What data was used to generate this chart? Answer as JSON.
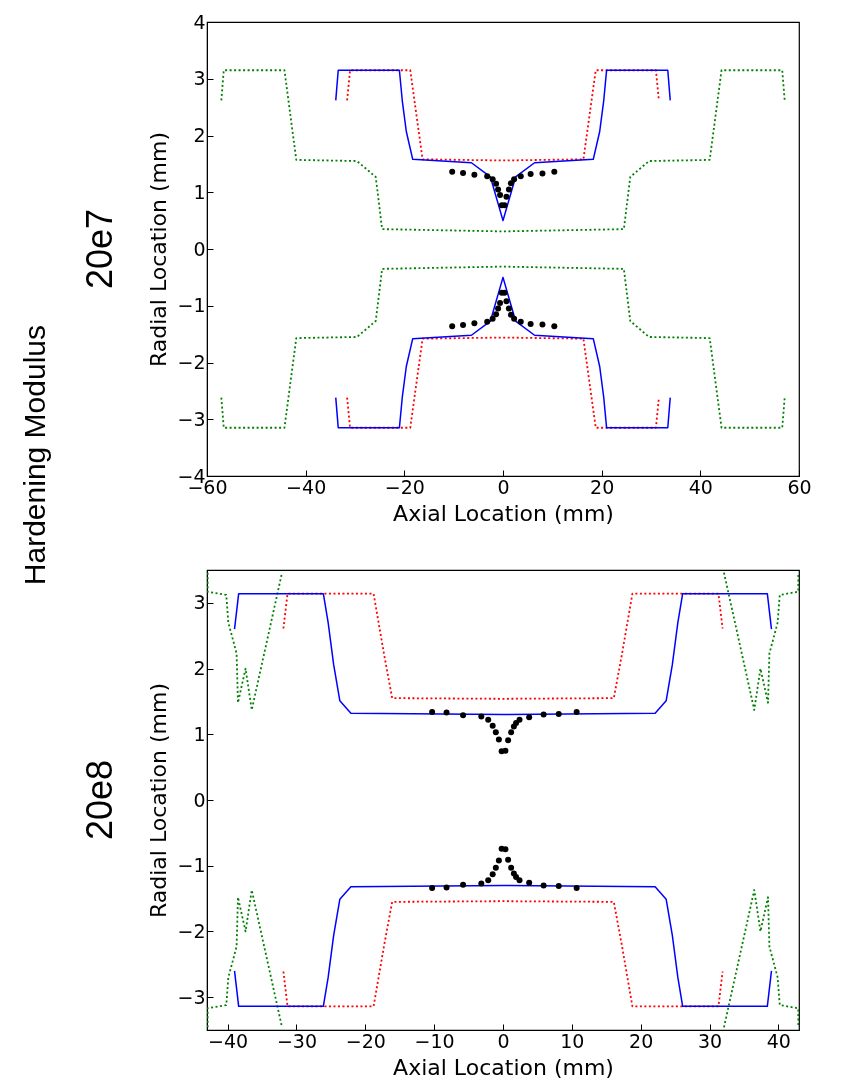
{
  "chart_data": [
    {
      "type": "line",
      "title": "20e7",
      "xlabel": "Axial Location (mm)",
      "ylabel": "Radial Location (mm)",
      "annotations": [
        "Hardening Modulus"
      ],
      "xlim": [
        -60,
        60
      ],
      "ylim": [
        -4,
        4
      ],
      "xticks": [
        -60,
        -40,
        -20,
        0,
        20,
        40,
        60
      ],
      "yticks": [
        -4,
        -3,
        -2,
        -1,
        0,
        1,
        2,
        3,
        4
      ],
      "series": [
        {
          "color": "#008000",
          "line_style": "dotted",
          "x": [
            -57.1,
            -56.6,
            -44.3,
            -41.9,
            -29.6,
            -25.8,
            -24.5,
            0,
            24.5,
            25.8,
            29.6,
            41.9,
            44.3,
            56.6,
            57.1,
            null,
            -57.1,
            -56.6,
            -44.3,
            -41.9,
            -29.6,
            -25.8,
            -24.5,
            0,
            24.5,
            25.8,
            29.6,
            41.9,
            44.3,
            56.6,
            57.1
          ],
          "values": [
            2.62,
            3.15,
            3.15,
            1.57,
            1.55,
            1.27,
            0.35,
            0.31,
            0.35,
            1.27,
            1.55,
            1.57,
            3.15,
            3.15,
            2.62,
            null,
            -2.62,
            -3.15,
            -3.15,
            -1.57,
            -1.55,
            -1.27,
            -0.35,
            -0.31,
            -0.35,
            -1.27,
            -1.55,
            -1.57,
            -3.15,
            -3.15,
            -2.62
          ]
        },
        {
          "color": "#ff0000",
          "line_style": "dotted",
          "x": [
            -31.6,
            -31.0,
            -18.8,
            -16.3,
            0,
            16.3,
            18.8,
            31.0,
            31.6,
            null,
            -31.6,
            -31.0,
            -18.8,
            -16.3,
            0,
            16.3,
            18.8,
            31.0,
            31.6
          ],
          "values": [
            2.62,
            3.15,
            3.15,
            1.58,
            1.56,
            1.58,
            3.15,
            3.15,
            2.62,
            null,
            -2.62,
            -3.15,
            -3.15,
            -1.58,
            -1.56,
            -1.58,
            -3.15,
            -3.15,
            -2.62
          ]
        },
        {
          "color": "#0000ff",
          "line_style": "solid",
          "x": [
            -33.9,
            -33.4,
            -21.0,
            -20.4,
            -19.6,
            -18.3,
            -6.4,
            -2.55,
            0,
            2.55,
            6.4,
            18.3,
            19.6,
            20.4,
            21.0,
            33.4,
            33.9,
            null,
            -33.9,
            -33.4,
            -21.0,
            -20.4,
            -19.6,
            -18.3,
            -6.4,
            -2.55,
            0,
            2.55,
            6.4,
            18.3,
            19.6,
            20.4,
            21.0,
            33.4,
            33.9
          ],
          "values": [
            2.62,
            3.15,
            3.15,
            2.6,
            2.07,
            1.58,
            1.52,
            1.27,
            0.5,
            1.27,
            1.52,
            1.58,
            2.07,
            2.6,
            3.15,
            3.15,
            2.62,
            null,
            -2.62,
            -3.15,
            -3.15,
            -2.6,
            -2.07,
            -1.58,
            -1.52,
            -1.27,
            -0.5,
            -1.27,
            -1.52,
            -1.58,
            -2.07,
            -2.6,
            -3.15,
            -3.15,
            -2.62
          ]
        },
        {
          "type": "scatter",
          "color": "#000000",
          "marker": "circle",
          "x": [
            -10.3,
            -8.1,
            -5.8,
            -3.2,
            -2.1,
            -1.4,
            -1.0,
            -0.6,
            -0.25,
            0.3,
            0.7,
            1.2,
            1.6,
            2.25,
            3.6,
            5.6,
            8.0,
            10.4,
            -10.3,
            -8.1,
            -5.8,
            -3.2,
            -2.1,
            -1.4,
            -1.0,
            -0.6,
            -0.25,
            0.3,
            0.7,
            1.2,
            1.6,
            2.25,
            3.6,
            5.6,
            8.0,
            10.4
          ],
          "values": [
            1.36,
            1.34,
            1.31,
            1.28,
            1.23,
            1.15,
            1.05,
            0.95,
            0.77,
            0.77,
            0.92,
            1.05,
            1.16,
            1.23,
            1.28,
            1.32,
            1.33,
            1.36,
            -1.36,
            -1.34,
            -1.31,
            -1.28,
            -1.23,
            -1.15,
            -1.05,
            -0.95,
            -0.77,
            -0.77,
            -0.92,
            -1.05,
            -1.16,
            -1.23,
            -1.28,
            -1.32,
            -1.33,
            -1.36
          ]
        }
      ]
    },
    {
      "type": "line",
      "title": "20e8",
      "xlabel": "Axial Location (mm)",
      "ylabel": "Radial Location (mm)",
      "xlim": [
        -43,
        43
      ],
      "ylim": [
        -3.5,
        3.5
      ],
      "xticks": [
        -40,
        -30,
        -20,
        -10,
        0,
        10,
        20,
        30,
        40
      ],
      "yticks": [
        -3,
        -2,
        -1,
        0,
        1,
        2,
        3
      ],
      "series": [
        {
          "color": "#008000",
          "line_style": "dotted",
          "x": [
            -42.9,
            -42.9,
            -40.2,
            -39.9,
            -38.7,
            -38.5,
            -37.4,
            -36.5,
            -32.1,
            null,
            32.1,
            36.5,
            37.4,
            38.5,
            38.7,
            39.9,
            40.2,
            42.9,
            42.9,
            null,
            -42.9,
            -42.9,
            -40.2,
            -39.9,
            -38.7,
            -38.5,
            -37.4,
            -36.5,
            -32.1,
            null,
            32.1,
            36.5,
            37.4,
            38.5,
            38.7,
            39.9,
            40.2,
            42.9,
            42.9
          ],
          "values": [
            3.46,
            3.17,
            3.12,
            2.7,
            2.23,
            1.48,
            2.0,
            1.37,
            3.46,
            null,
            3.46,
            1.37,
            2.0,
            1.48,
            2.23,
            2.7,
            3.12,
            3.17,
            3.46,
            null,
            -3.46,
            -3.17,
            -3.12,
            -2.7,
            -2.23,
            -1.48,
            -2.0,
            -1.37,
            -3.46,
            null,
            -3.46,
            -1.37,
            -2.0,
            -1.48,
            -2.23,
            -2.7,
            -3.12,
            -3.17,
            -3.46
          ]
        },
        {
          "color": "#ff0000",
          "line_style": "dotted",
          "x": [
            -31.9,
            -31.3,
            -18.8,
            -17.3,
            -16.1,
            0,
            16.1,
            17.3,
            18.8,
            31.3,
            31.9,
            null,
            -31.9,
            -31.3,
            -18.8,
            -17.3,
            -16.1,
            0,
            16.1,
            17.3,
            18.8,
            31.3,
            31.9
          ],
          "values": [
            2.61,
            3.14,
            3.14,
            2.23,
            1.55,
            1.54,
            1.55,
            2.23,
            3.14,
            3.14,
            2.61,
            null,
            -2.61,
            -3.14,
            -3.14,
            -2.23,
            -1.55,
            -1.54,
            -1.55,
            -2.23,
            -3.14,
            -3.14,
            -2.61
          ]
        },
        {
          "color": "#0000ff",
          "line_style": "solid",
          "x": [
            -39.0,
            -38.4,
            -26.1,
            -25.4,
            -24.6,
            -23.7,
            -22.1,
            0,
            22.1,
            23.7,
            24.6,
            25.4,
            26.1,
            38.4,
            39.0,
            null,
            -39.0,
            -38.4,
            -26.1,
            -25.4,
            -24.6,
            -23.7,
            -22.1,
            0,
            22.1,
            23.7,
            24.6,
            25.4,
            26.1,
            38.4,
            39.0
          ],
          "values": [
            2.6,
            3.14,
            3.14,
            2.7,
            2.06,
            1.51,
            1.32,
            1.3,
            1.32,
            1.51,
            2.06,
            2.7,
            3.14,
            3.14,
            2.6,
            null,
            -2.6,
            -3.14,
            -3.14,
            -2.7,
            -2.06,
            -1.51,
            -1.32,
            -1.3,
            -1.32,
            -1.51,
            -2.06,
            -2.7,
            -3.14,
            -3.14,
            -2.6
          ]
        },
        {
          "type": "scatter",
          "color": "#000000",
          "marker": "circle",
          "x": [
            -10.3,
            -8.2,
            -5.8,
            -3.15,
            -2.15,
            -1.5,
            -1.04,
            -0.6,
            -0.2,
            0.35,
            0.74,
            1.18,
            1.58,
            1.9,
            2.4,
            3.8,
            5.9,
            8.1,
            10.7,
            -10.3,
            -8.2,
            -5.8,
            -3.15,
            -2.15,
            -1.5,
            -1.04,
            -0.6,
            -0.2,
            0.35,
            0.74,
            1.18,
            1.58,
            1.9,
            2.4,
            3.8,
            5.9,
            8.1,
            10.7
          ],
          "values": [
            1.34,
            1.33,
            1.29,
            1.27,
            1.22,
            1.13,
            1.03,
            0.92,
            0.74,
            0.75,
            0.91,
            1.03,
            1.12,
            1.17,
            1.22,
            1.26,
            1.3,
            1.31,
            1.34,
            -1.34,
            -1.33,
            -1.29,
            -1.27,
            -1.22,
            -1.13,
            -1.03,
            -0.92,
            -0.74,
            -0.75,
            -0.91,
            -1.03,
            -1.12,
            -1.17,
            -1.22,
            -1.26,
            -1.3,
            -1.31,
            -1.34
          ]
        }
      ]
    }
  ]
}
